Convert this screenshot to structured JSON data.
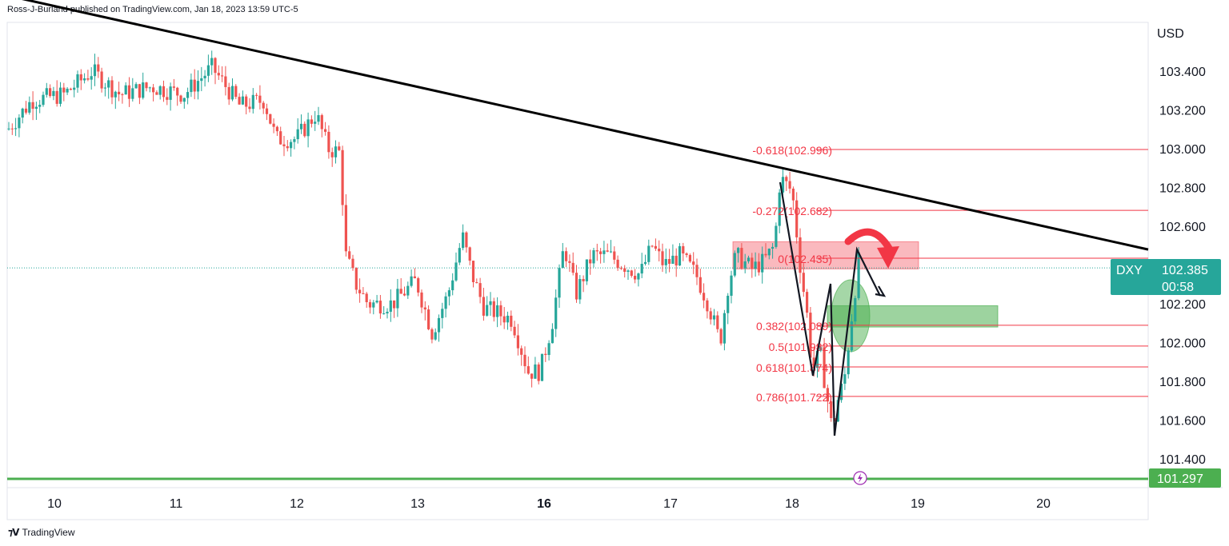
{
  "publisher_line": "Ross-J-Burland published on TradingView.com, Jan 18, 2023 13:59 UTC-5",
  "footer_brand": "TradingView",
  "colors": {
    "up": "#26a69a",
    "down": "#ef5350",
    "trendline": "#000000",
    "fib": "#f23645",
    "support": "#4caf50",
    "price_tag": "#26a69a"
  },
  "chart_data": {
    "type": "candlestick",
    "symbol": "DXY",
    "currency": "USD",
    "last_price": "102.385",
    "countdown": "00:58",
    "support_level": "101.297",
    "ylim": [
      101.25,
      103.6
    ],
    "y_ticks": [
      "103.400",
      "103.200",
      "103.000",
      "102.800",
      "102.600",
      "102.200",
      "102.000",
      "101.800",
      "101.600",
      "101.400"
    ],
    "x_ticks": [
      {
        "label": "10",
        "bold": false
      },
      {
        "label": "11",
        "bold": false
      },
      {
        "label": "12",
        "bold": false
      },
      {
        "label": "13",
        "bold": false
      },
      {
        "label": "16",
        "bold": true
      },
      {
        "label": "17",
        "bold": false
      },
      {
        "label": "18",
        "bold": false
      },
      {
        "label": "19",
        "bold": false
      },
      {
        "label": "20",
        "bold": false
      }
    ],
    "fib_levels": [
      {
        "label": "-0.618(102.996)",
        "value": 102.996
      },
      {
        "label": "-0.272(102.682)",
        "value": 102.682
      },
      {
        "label": "0(102.435)",
        "value": 102.435
      },
      {
        "label": "0.382(102.089)",
        "value": 102.089
      },
      {
        "label": "0.5(101.982)",
        "value": 101.982
      },
      {
        "label": "0.618(101.874)",
        "value": 101.874
      },
      {
        "label": "0.786(101.722)",
        "value": 101.722
      }
    ],
    "trendline": {
      "start_value": 103.79,
      "end_value": 102.48
    },
    "resistance_zone": [
      102.38,
      102.52
    ],
    "target_zone": [
      102.08,
      102.19
    ]
  }
}
